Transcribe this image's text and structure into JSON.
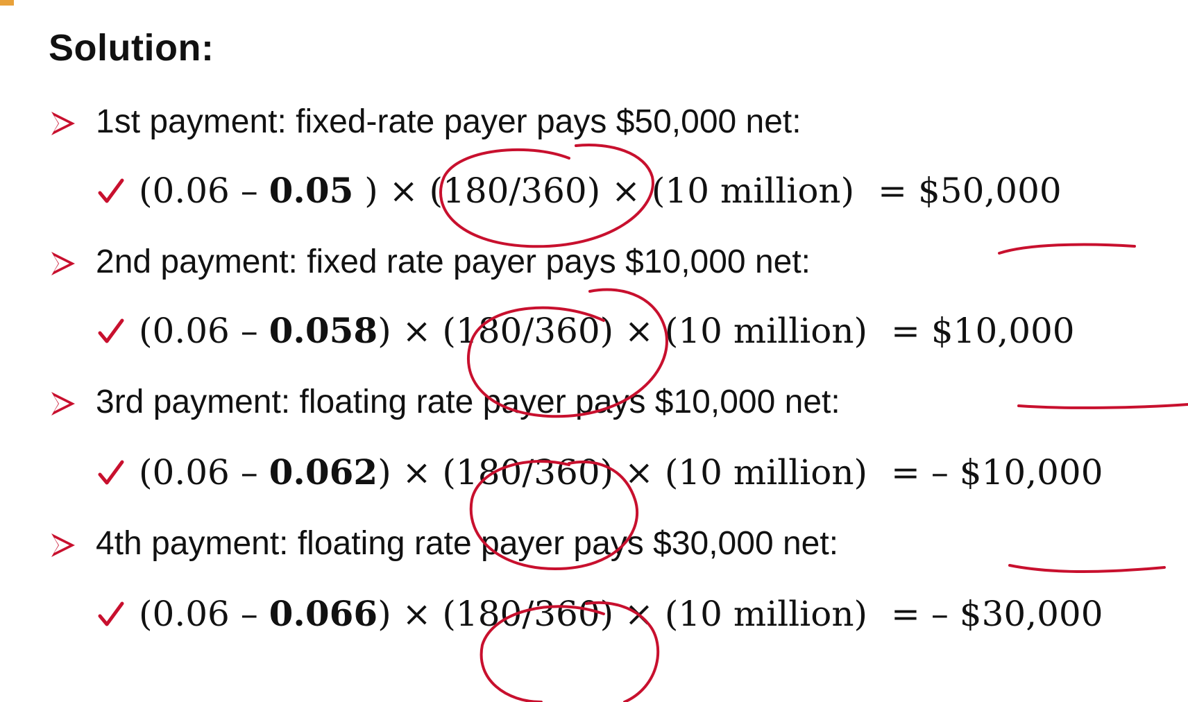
{
  "title": "Solution:",
  "colors": {
    "bullet_red": "#c8102e",
    "ink_red": "#c8102e",
    "text": "#111111",
    "corner_accent": "#e8a13a"
  },
  "items": [
    {
      "bullet_icon": "arrow-bullet-icon",
      "heading": "1st payment: fixed-rate payer pays $50,000 net:",
      "check_icon": "check-icon",
      "formula": {
        "open": "(0.06 – ",
        "rate": "0.05",
        "after_rate": " ) × ",
        "days": "(180/360)",
        "mid": " × (10 million)",
        "equals": "=",
        "result": "$50,000"
      }
    },
    {
      "bullet_icon": "arrow-bullet-icon",
      "heading": "2nd payment: fixed rate payer pays $10,000 net:",
      "check_icon": "check-icon",
      "formula": {
        "open": "(0.06 – ",
        "rate": "0.058",
        "after_rate": ") × ",
        "days": "(180/360)",
        "mid": " × (10 million)",
        "equals": "=",
        "result": "$10,000"
      }
    },
    {
      "bullet_icon": "arrow-bullet-icon",
      "heading": "3rd payment: floating rate payer pays $10,000 net:",
      "check_icon": "check-icon",
      "formula": {
        "open": "(0.06 – ",
        "rate": "0.062",
        "after_rate": ") × ",
        "days": "(180/360)",
        "mid": " × (10 million)",
        "equals": "=",
        "result": "– $10,000"
      }
    },
    {
      "bullet_icon": "arrow-bullet-icon",
      "heading": "4th payment: floating rate payer pays $30,000 net:",
      "check_icon": "check-icon",
      "formula": {
        "open": "(0.06 – ",
        "rate": "0.066",
        "after_rate": ") × ",
        "days": "(180/360)",
        "mid": " × (10 million)",
        "equals": "=",
        "result": "– $30,000"
      }
    }
  ]
}
